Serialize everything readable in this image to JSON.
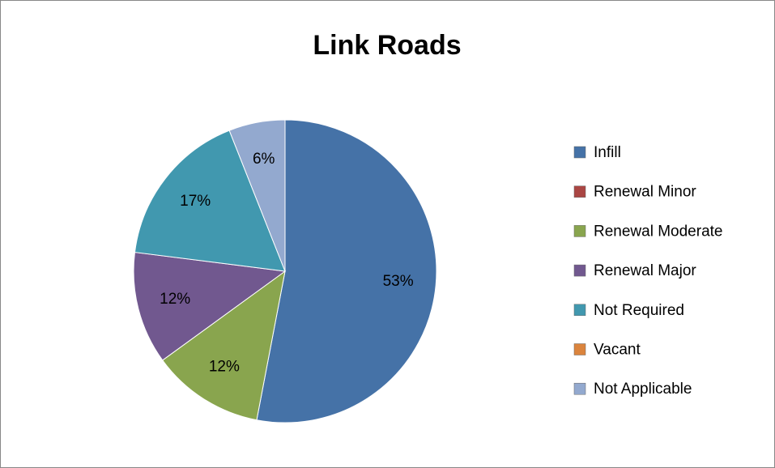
{
  "chart_data": {
    "type": "pie",
    "title": "Link Roads",
    "categories": [
      "Infill",
      "Renewal Minor",
      "Renewal Moderate",
      "Renewal Major",
      "Not Required",
      "Vacant",
      "Not Applicable"
    ],
    "values": [
      53,
      0,
      12,
      12,
      17,
      0,
      6
    ],
    "value_labels": [
      "53%",
      null,
      "12%",
      "12%",
      "17%",
      null,
      "6%"
    ],
    "colors": [
      "#4572a7",
      "#aa4643",
      "#89a54e",
      "#71588f",
      "#4198af",
      "#db843d",
      "#93a9cf"
    ],
    "legend": "right"
  }
}
